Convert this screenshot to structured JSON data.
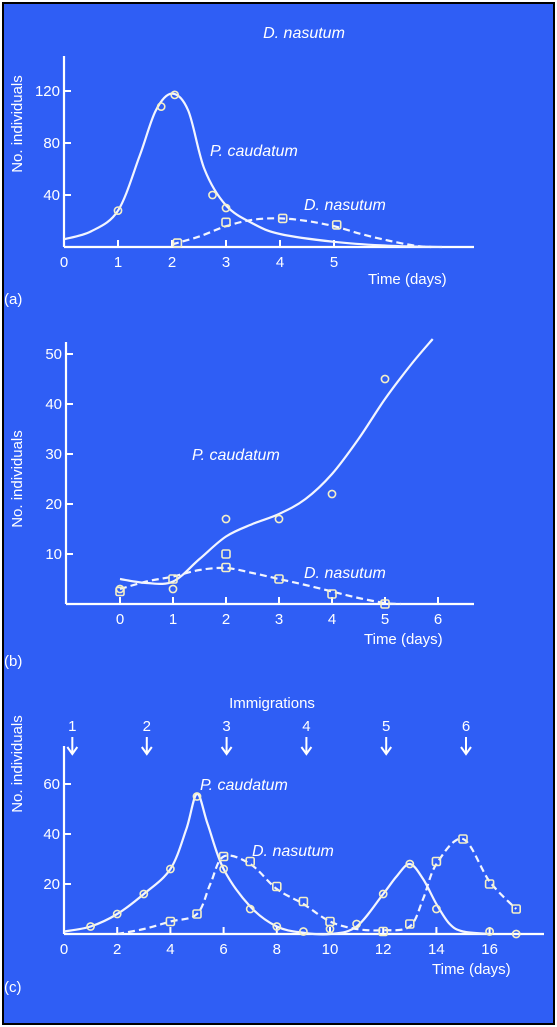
{
  "colors": {
    "background": "#2f5ef5",
    "ink": "#ffffff",
    "border": "#000000"
  },
  "chart_data": [
    {
      "type": "line",
      "panel_label": "(a)",
      "title": "D. nasutum",
      "xlabel": "Time (days)",
      "ylabel": "No. individuals",
      "xlim": [
        0,
        7.5
      ],
      "ylim": [
        0,
        150
      ],
      "x_ticks": [
        "0",
        "1",
        "2",
        "3",
        "4",
        "5"
      ],
      "y_ticks": [
        "40",
        "80",
        "120"
      ],
      "series": [
        {
          "name": "P. caudatum",
          "style": "solid",
          "curve": [
            [
              0,
              6
            ],
            [
              0.5,
              12
            ],
            [
              1,
              28
            ],
            [
              1.4,
              70
            ],
            [
              1.7,
              105
            ],
            [
              2,
              118
            ],
            [
              2.3,
              105
            ],
            [
              2.6,
              60
            ],
            [
              3,
              32
            ],
            [
              3.5,
              18
            ],
            [
              4,
              10
            ],
            [
              5,
              4
            ],
            [
              6,
              1
            ],
            [
              7,
              0
            ]
          ],
          "points": [
            [
              1,
              28
            ],
            [
              1.8,
              108
            ],
            [
              2.05,
              117
            ],
            [
              2.75,
              40
            ],
            [
              3,
              30
            ]
          ]
        },
        {
          "name": "D. nasutum",
          "style": "dashed",
          "curve": [
            [
              2,
              2
            ],
            [
              2.5,
              8
            ],
            [
              3,
              16
            ],
            [
              3.5,
              21
            ],
            [
              4,
              22
            ],
            [
              4.5,
              20
            ],
            [
              5,
              16
            ],
            [
              5.5,
              10
            ],
            [
              6,
              5
            ],
            [
              6.5,
              1
            ],
            [
              6.8,
              0
            ]
          ],
          "points": [
            [
              2.1,
              3
            ],
            [
              3,
              19
            ],
            [
              4.05,
              22
            ],
            [
              5.05,
              17
            ]
          ]
        }
      ]
    },
    {
      "type": "line",
      "panel_label": "(b)",
      "xlabel": "Time (days)",
      "ylabel": "No. individuals",
      "xlim": [
        -1.8,
        6.8
      ],
      "ylim": [
        0,
        55
      ],
      "x_ticks": [
        "0",
        "1",
        "2",
        "3",
        "4",
        "5",
        "6"
      ],
      "y_ticks": [
        "10",
        "20",
        "30",
        "40",
        "50"
      ],
      "series": [
        {
          "name": "P. caudatum",
          "style": "solid",
          "curve": [
            [
              0,
              5
            ],
            [
              0.5,
              4.2
            ],
            [
              1,
              4.5
            ],
            [
              1.5,
              9
            ],
            [
              2,
              13.5
            ],
            [
              2.5,
              16
            ],
            [
              3,
              18
            ],
            [
              3.5,
              21
            ],
            [
              4,
              26
            ],
            [
              4.5,
              33
            ],
            [
              5,
              41
            ],
            [
              5.5,
              48
            ],
            [
              5.9,
              53
            ]
          ],
          "points": [
            [
              0,
              3
            ],
            [
              1,
              3
            ],
            [
              2,
              17
            ],
            [
              3,
              17
            ],
            [
              4,
              22
            ],
            [
              5,
              45
            ]
          ]
        },
        {
          "name": "D. nasutum",
          "style": "dashed",
          "curve": [
            [
              0,
              3
            ],
            [
              0.5,
              4.5
            ],
            [
              1,
              5.5
            ],
            [
              1.5,
              6.8
            ],
            [
              2,
              7.2
            ],
            [
              2.5,
              6.2
            ],
            [
              3,
              5
            ],
            [
              3.5,
              3.8
            ],
            [
              4,
              2.5
            ],
            [
              4.5,
              1.2
            ],
            [
              5,
              0.2
            ],
            [
              5.3,
              0
            ]
          ],
          "points": [
            [
              0,
              2.5
            ],
            [
              1,
              5
            ],
            [
              2,
              10
            ],
            [
              2,
              7.3
            ],
            [
              3,
              5
            ],
            [
              4,
              2
            ],
            [
              5,
              0
            ]
          ]
        }
      ]
    },
    {
      "type": "line",
      "panel_label": "(c)",
      "title": "Immigrations",
      "xlabel": "Time (days)",
      "ylabel": "No. individuals",
      "xlim": [
        0,
        18
      ],
      "ylim": [
        0,
        72
      ],
      "x_ticks": [
        "0",
        "2",
        "4",
        "6",
        "8",
        "10",
        "12",
        "14",
        "16"
      ],
      "y_ticks": [
        "20",
        "40",
        "60"
      ],
      "immigrations": [
        {
          "label": "1",
          "day": 0.2
        },
        {
          "label": "2",
          "day": 3
        },
        {
          "label": "3",
          "day": 6
        },
        {
          "label": "4",
          "day": 9
        },
        {
          "label": "5",
          "day": 12
        },
        {
          "label": "6",
          "day": 15
        }
      ],
      "series": [
        {
          "name": "P. caudatum",
          "style": "solid",
          "curve": [
            [
              0,
              1
            ],
            [
              1,
              3
            ],
            [
              2,
              8
            ],
            [
              3,
              16
            ],
            [
              4,
              26
            ],
            [
              4.6,
              42
            ],
            [
              5,
              56
            ],
            [
              5.4,
              44
            ],
            [
              6,
              26
            ],
            [
              7,
              11
            ],
            [
              8,
              3
            ],
            [
              9,
              0.5
            ],
            [
              10,
              0
            ],
            [
              11,
              3
            ],
            [
              12,
              16
            ],
            [
              12.5,
              23
            ],
            [
              13,
              28
            ],
            [
              13.5,
              22
            ],
            [
              14,
              12
            ],
            [
              14.5,
              4
            ],
            [
              15,
              1
            ],
            [
              16,
              0
            ]
          ],
          "points": [
            [
              1,
              3
            ],
            [
              2,
              8
            ],
            [
              3,
              16
            ],
            [
              4,
              26
            ],
            [
              5,
              55
            ],
            [
              6,
              26
            ],
            [
              7,
              10
            ],
            [
              8,
              3
            ],
            [
              9,
              1
            ],
            [
              10,
              2
            ],
            [
              11,
              4
            ],
            [
              12,
              16
            ],
            [
              13,
              28
            ],
            [
              14,
              10
            ],
            [
              16,
              1
            ],
            [
              17,
              0
            ]
          ]
        },
        {
          "name": "D. nasutum",
          "style": "dashed",
          "curve": [
            [
              2,
              0
            ],
            [
              3,
              2
            ],
            [
              4,
              5
            ],
            [
              5,
              8
            ],
            [
              5.5,
              20
            ],
            [
              6,
              31
            ],
            [
              7,
              28
            ],
            [
              8,
              18
            ],
            [
              9,
              12
            ],
            [
              10,
              5
            ],
            [
              11,
              2
            ],
            [
              12,
              1.5
            ],
            [
              13,
              3
            ],
            [
              13.5,
              14
            ],
            [
              14,
              28
            ],
            [
              15,
              38
            ],
            [
              16,
              21
            ],
            [
              17,
              10
            ]
          ],
          "points": [
            [
              4,
              5
            ],
            [
              5,
              8
            ],
            [
              6,
              31
            ],
            [
              7,
              29
            ],
            [
              8,
              19
            ],
            [
              9,
              13
            ],
            [
              10,
              5
            ],
            [
              12,
              1
            ],
            [
              13,
              4
            ],
            [
              14,
              29
            ],
            [
              15,
              38
            ],
            [
              16,
              20
            ],
            [
              17,
              10
            ]
          ]
        }
      ]
    }
  ]
}
